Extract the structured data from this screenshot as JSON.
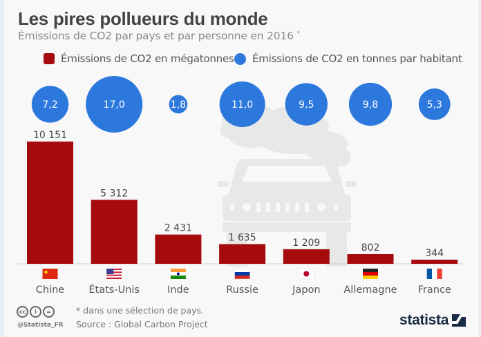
{
  "chart_data": {
    "type": "bar",
    "title": "Les pires pollueurs du monde",
    "subtitle": "Émissions de CO2 par pays et par personne en 2016",
    "subtitle_marker": "*",
    "categories": [
      "Chine",
      "États-Unis",
      "Inde",
      "Russie",
      "Japon",
      "Allemagne",
      "France"
    ],
    "flags": [
      "china-flag",
      "usa-flag",
      "india-flag",
      "russia-flag",
      "japan-flag",
      "germany-flag",
      "france-flag"
    ],
    "series": [
      {
        "name": "Émissions de CO2 en mégatonnes",
        "kind": "bar",
        "color": "#a50a0d",
        "values": [
          10151,
          5312,
          2431,
          1635,
          1209,
          802,
          344
        ],
        "labels": [
          "10 151",
          "5 312",
          "2 431",
          "1 635",
          "1 209",
          "802",
          "344"
        ]
      },
      {
        "name": "Émissions de CO2 en tonnes par habitant",
        "kind": "bubble",
        "color": "#2c78dc",
        "values": [
          7.2,
          17.0,
          1.8,
          11.0,
          9.5,
          9.8,
          5.3
        ],
        "labels": [
          "7,2",
          "17,0",
          "1,8",
          "11,0",
          "9,5",
          "9,8",
          "5,3"
        ]
      }
    ],
    "ylim": [
      0,
      10151
    ],
    "grid": false,
    "legend": "top"
  },
  "footer": {
    "note": "* dans une sélection de pays.",
    "source": "Source : Global Carbon Project",
    "handle": "@Statista_FR",
    "brand": "statista"
  },
  "colors": {
    "bar": "#a50a0d",
    "bubble": "#2c78dc",
    "text": "#444444",
    "muted": "#8a8a8a"
  }
}
